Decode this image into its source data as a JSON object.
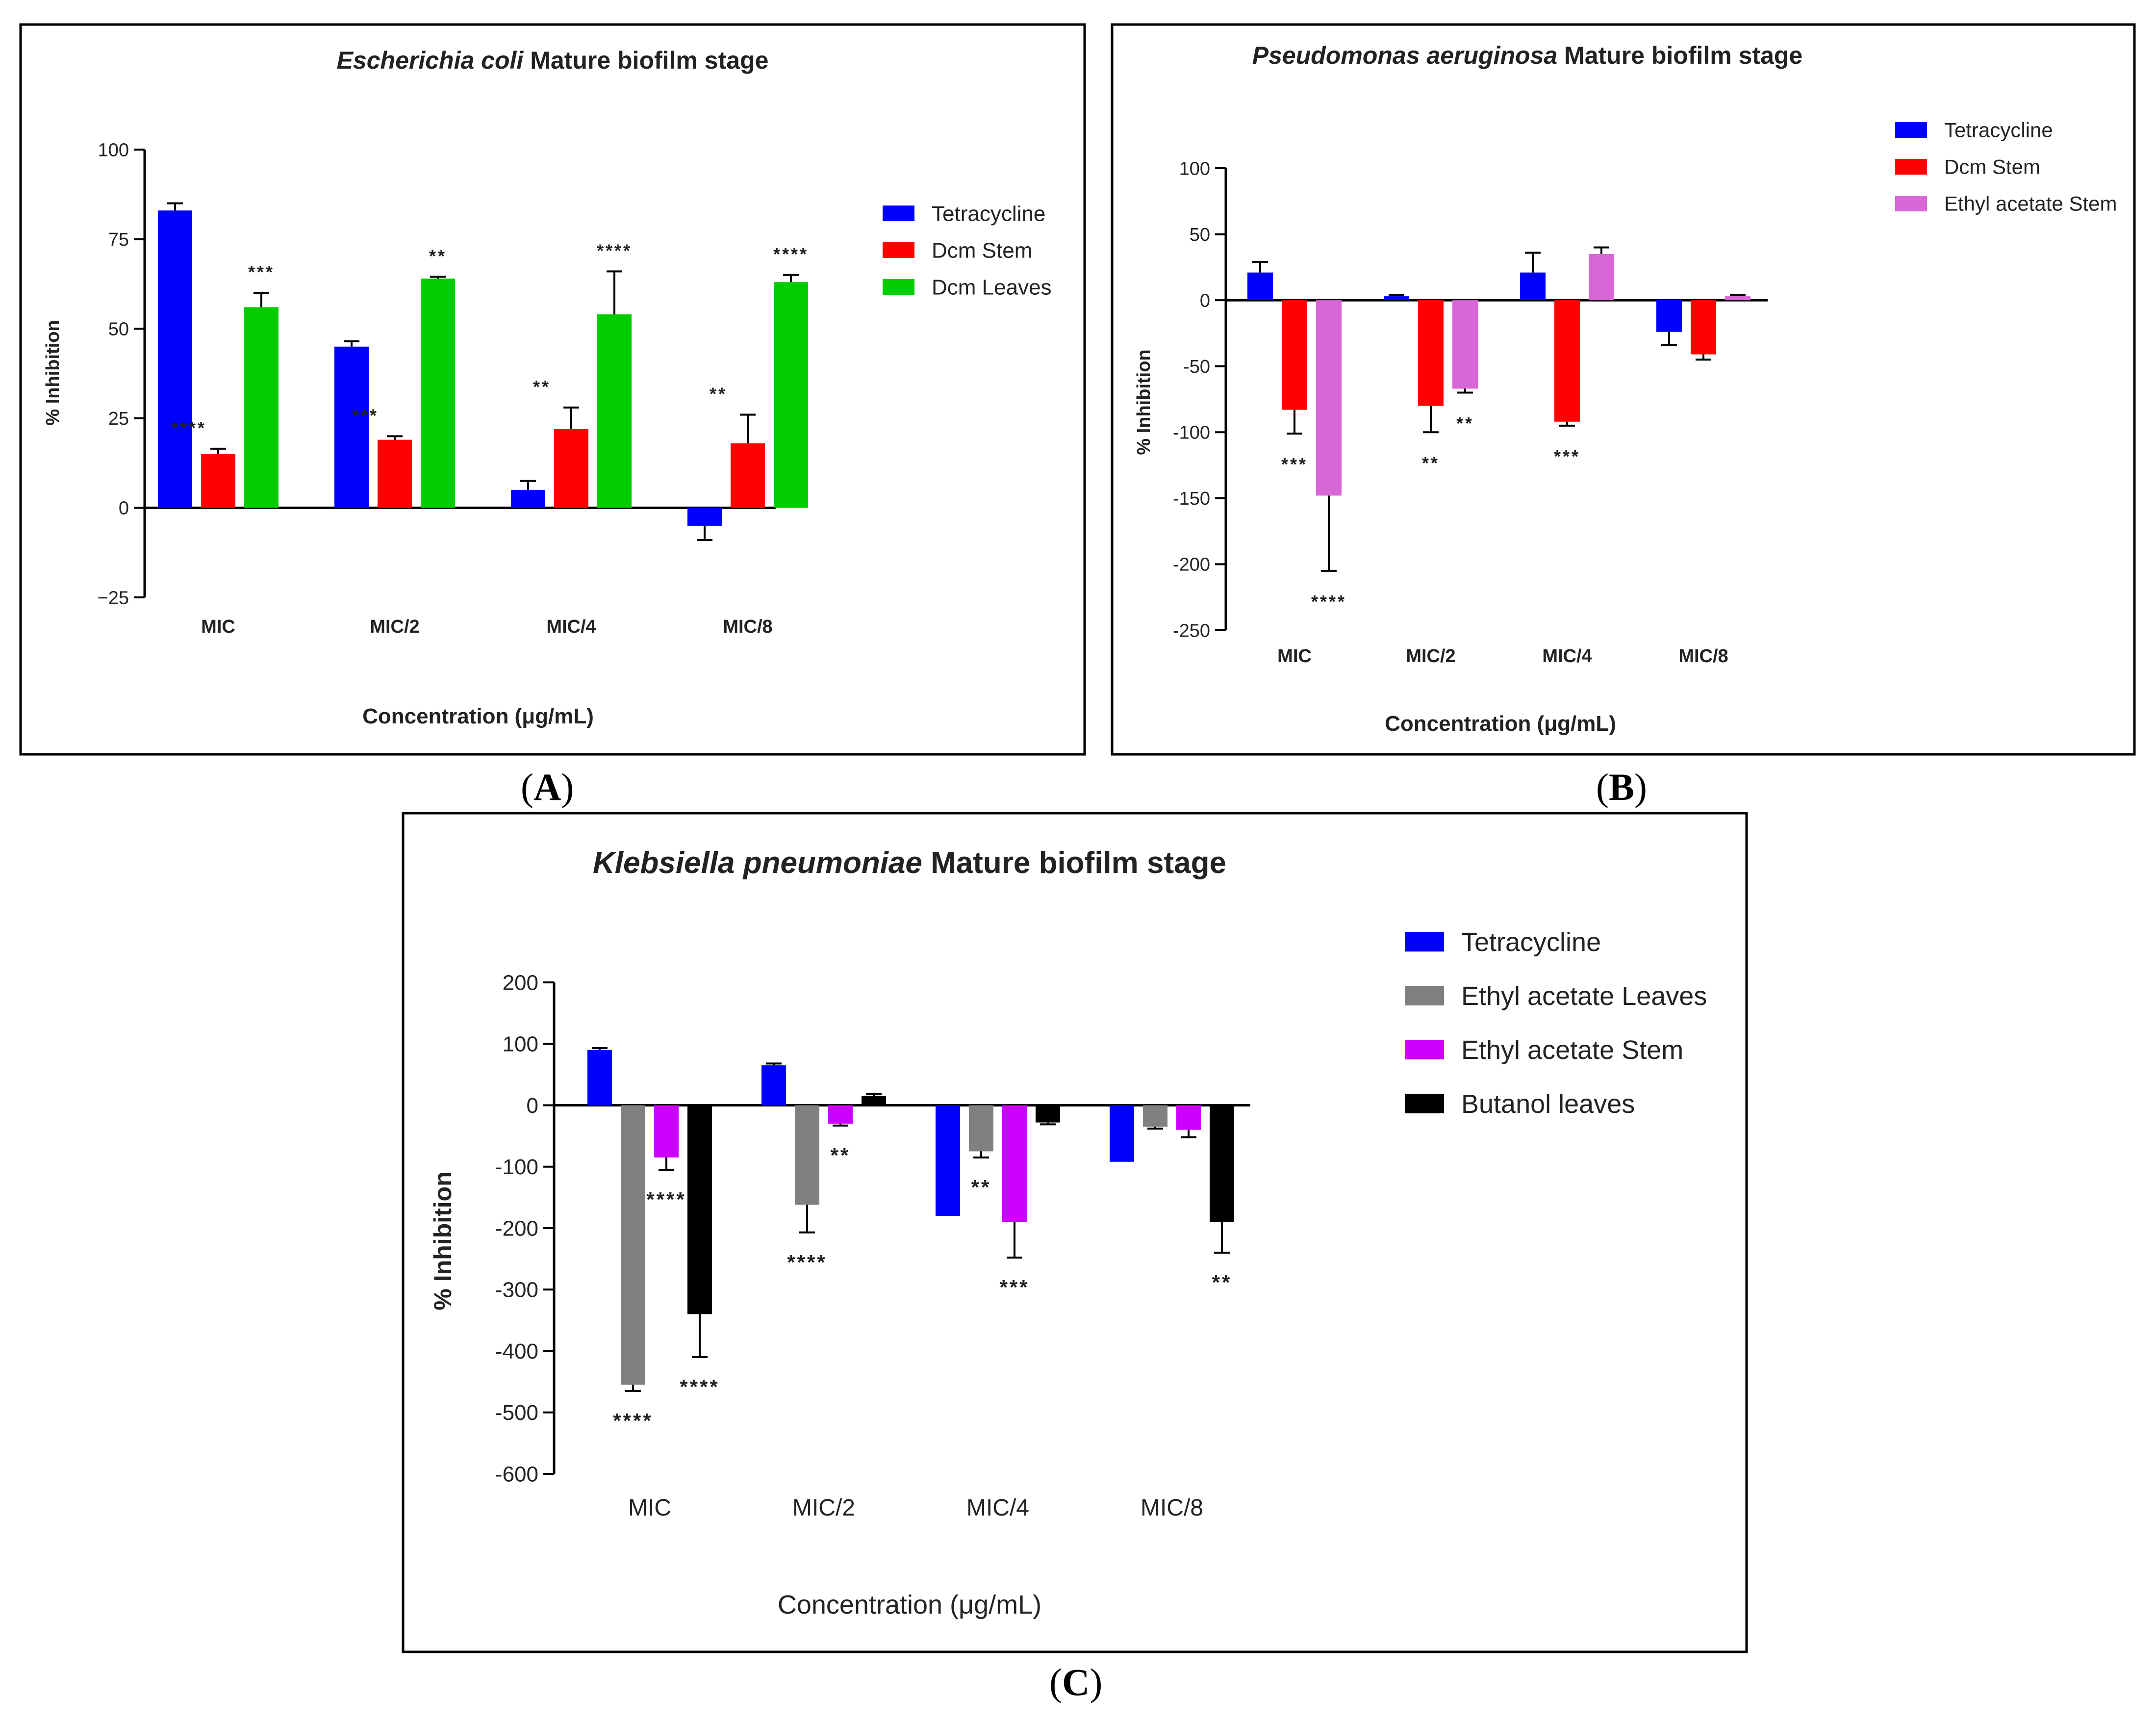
{
  "panels": [
    {
      "label": "A",
      "paren_open": "(",
      "paren_close": ")"
    },
    {
      "label": "B",
      "paren_open": "(",
      "paren_close": ")"
    },
    {
      "label": "C",
      "paren_open": "(",
      "paren_close": ")"
    }
  ],
  "chart_data": [
    {
      "type": "bar",
      "title_italic": "Escherichia coli",
      "title_rest": " Mature biofilm stage",
      "xlabel": "Concentration (μg/mL)",
      "ylabel": "% Inhibition",
      "ylim": [
        -25,
        100
      ],
      "yticks": [
        -25,
        0,
        25,
        50,
        75,
        100
      ],
      "ytick_labels": [
        "−25",
        "0",
        "25",
        "50",
        "75",
        "100"
      ],
      "categories": [
        "MIC",
        "MIC/2",
        "MIC/4",
        "MIC/8"
      ],
      "legend_position": "right",
      "series": [
        {
          "name": "Tetracycline",
          "color": "#0000ff",
          "values": [
            83,
            45,
            5,
            -5
          ],
          "errors": [
            2,
            1.5,
            2.5,
            4
          ]
        },
        {
          "name": "Dcm Stem",
          "color": "#ff0000",
          "values": [
            15,
            19,
            22,
            18
          ],
          "errors": [
            1.5,
            1,
            6,
            8
          ]
        },
        {
          "name": "Dcm Leaves",
          "color": "#00cc00",
          "values": [
            56,
            64,
            54,
            63
          ],
          "errors": [
            4,
            0.5,
            12,
            2
          ]
        }
      ],
      "annotations": [
        {
          "category": 0,
          "series": 1,
          "text": "****"
        },
        {
          "category": 0,
          "series": 2,
          "text": "***"
        },
        {
          "category": 1,
          "series": 1,
          "text": "***"
        },
        {
          "category": 1,
          "series": 2,
          "text": "**"
        },
        {
          "category": 2,
          "series": 1,
          "text": "**"
        },
        {
          "category": 2,
          "series": 2,
          "text": "****"
        },
        {
          "category": 3,
          "series": 1,
          "text": "**"
        },
        {
          "category": 3,
          "series": 2,
          "text": "****"
        }
      ]
    },
    {
      "type": "bar",
      "title_italic": "Pseudomonas aeruginosa",
      "title_rest": " Mature biofilm stage",
      "xlabel": "Concentration (μg/mL)",
      "ylabel": "% Inhibition",
      "ylim": [
        -250,
        100
      ],
      "yticks": [
        -250,
        -200,
        -150,
        -100,
        -50,
        0,
        50,
        100
      ],
      "ytick_labels": [
        "-250",
        "-200",
        "-150",
        "-100",
        "-50",
        "0",
        "50",
        "100"
      ],
      "categories": [
        "MIC",
        "MIC/2",
        "MIC/4",
        "MIC/8"
      ],
      "legend_position": "top-right",
      "series": [
        {
          "name": "Tetracycline",
          "color": "#0000ff",
          "values": [
            21,
            3,
            21,
            -24
          ],
          "errors": [
            8,
            1,
            15,
            10
          ]
        },
        {
          "name": "Dcm Stem",
          "color": "#ff0000",
          "values": [
            -83,
            -80,
            -92,
            -41
          ],
          "errors": [
            18,
            20,
            3,
            4
          ]
        },
        {
          "name": "Ethyl acetate Stem",
          "color": "#d966d6",
          "values": [
            -148,
            -67,
            35,
            3
          ],
          "errors": [
            57,
            3,
            5,
            1
          ]
        }
      ],
      "annotations": [
        {
          "category": 0,
          "series": 1,
          "text": "***"
        },
        {
          "category": 0,
          "series": 2,
          "text": "****"
        },
        {
          "category": 1,
          "series": 1,
          "text": "**"
        },
        {
          "category": 1,
          "series": 2,
          "text": "**"
        },
        {
          "category": 2,
          "series": 1,
          "text": "***"
        }
      ]
    },
    {
      "type": "bar",
      "title_italic": "Klebsiella pneumoniae",
      "title_rest": " Mature biofilm stage",
      "xlabel": "Concentration (μg/mL)",
      "ylabel": "%  Inhibition",
      "ylim": [
        -600,
        200
      ],
      "yticks": [
        -600,
        -500,
        -400,
        -300,
        -200,
        -100,
        0,
        100,
        200
      ],
      "ytick_labels": [
        "-600",
        "-500",
        "-400",
        "-300",
        "-200",
        "-100",
        "0",
        "100",
        "200"
      ],
      "categories": [
        "MIC",
        "MIC/2",
        "MIC/4",
        "MIC/8"
      ],
      "legend_position": "right",
      "series": [
        {
          "name": "Tetracycline",
          "color": "#0000ff",
          "values": [
            90,
            65,
            -180,
            -92
          ],
          "errors": [
            3,
            3,
            0,
            0
          ]
        },
        {
          "name": "Ethyl acetate Leaves",
          "color": "#808080",
          "values": [
            -455,
            -162,
            -75,
            -35
          ],
          "errors": [
            10,
            45,
            10,
            3
          ]
        },
        {
          "name": "Ethyl acetate Stem",
          "color": "#cc00ff",
          "values": [
            -85,
            -30,
            -190,
            -40
          ],
          "errors": [
            20,
            3,
            58,
            12
          ]
        },
        {
          "name": "Butanol leaves",
          "color": "#000000",
          "values": [
            -340,
            15,
            -28,
            -190
          ],
          "errors": [
            70,
            3,
            3,
            50
          ]
        }
      ],
      "annotations": [
        {
          "category": 0,
          "series": 1,
          "text": "****"
        },
        {
          "category": 0,
          "series": 2,
          "text": "****"
        },
        {
          "category": 0,
          "series": 3,
          "text": "****"
        },
        {
          "category": 1,
          "series": 1,
          "text": "****"
        },
        {
          "category": 1,
          "series": 2,
          "text": "**"
        },
        {
          "category": 2,
          "series": 1,
          "text": "**"
        },
        {
          "category": 2,
          "series": 2,
          "text": "***"
        },
        {
          "category": 3,
          "series": 3,
          "text": "**"
        }
      ]
    }
  ]
}
